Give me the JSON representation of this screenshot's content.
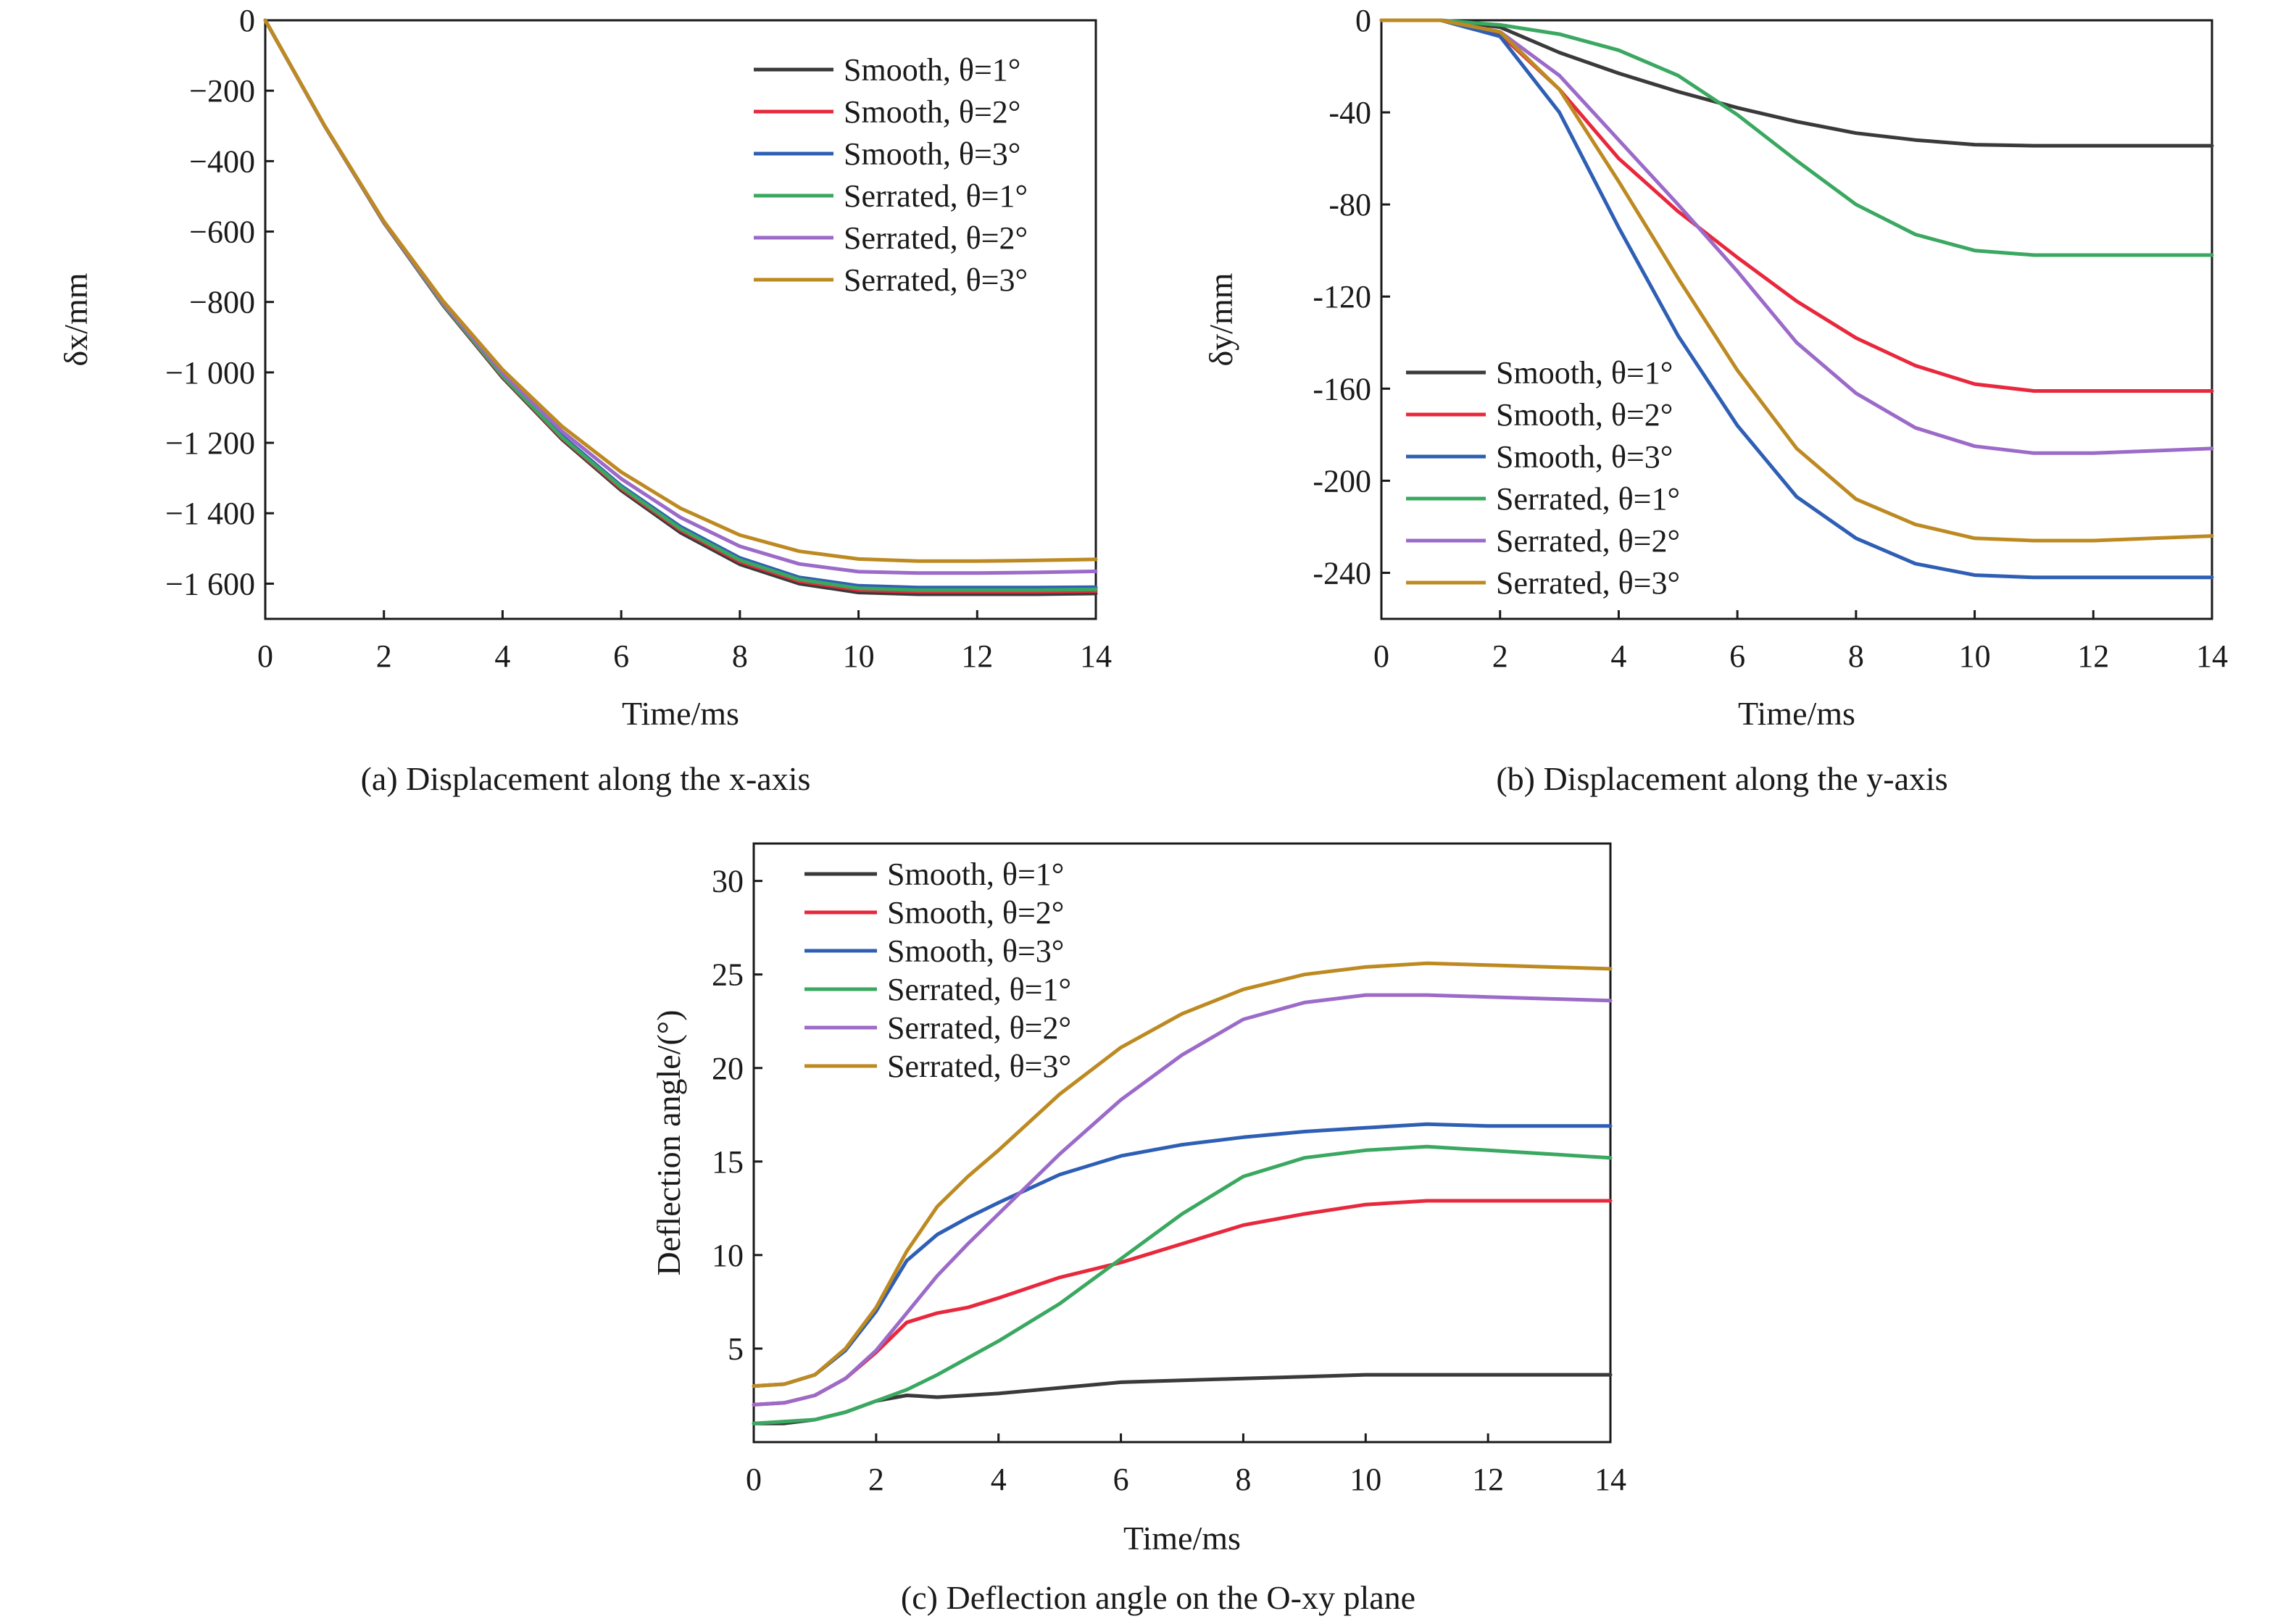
{
  "colors": {
    "smooth_1": "#3a3a3a",
    "smooth_2": "#e8283c",
    "smooth_3": "#2e5fb4",
    "serrated_1": "#3aa860",
    "serrated_2": "#9c6ac8",
    "serrated_3": "#bd8a22"
  },
  "chart_data": [
    {
      "type": "line",
      "caption": "(a) Displacement along the x-axis",
      "xlabel": "Time/ms",
      "ylabel": "δx/mm",
      "xlim": [
        0,
        14
      ],
      "ylim": [
        -1700,
        0
      ],
      "xticks": [
        0,
        2,
        4,
        6,
        8,
        10,
        12,
        14
      ],
      "xtick_labels": [
        "0",
        "2",
        "4",
        "6",
        "8",
        "10",
        "12",
        "14"
      ],
      "yticks": [
        0,
        -200,
        -400,
        -600,
        -800,
        -1000,
        -1200,
        -1400,
        -1600
      ],
      "ytick_labels": [
        "0",
        "−200",
        "−400",
        "−600",
        "−800",
        "−1 000",
        "−1 200",
        "−1 400",
        "−1 600"
      ],
      "legend_position": "top-right",
      "x": [
        0,
        1,
        2,
        3,
        4,
        5,
        6,
        7,
        8,
        9,
        10,
        11,
        12,
        13,
        14
      ],
      "series": [
        {
          "name": "Smooth, θ=1°",
          "color_key": "smooth_1",
          "values": [
            0,
            -300,
            -575,
            -810,
            -1015,
            -1190,
            -1335,
            -1455,
            -1545,
            -1600,
            -1625,
            -1630,
            -1630,
            -1630,
            -1628
          ]
        },
        {
          "name": "Smooth, θ=2°",
          "color_key": "smooth_2",
          "values": [
            0,
            -300,
            -575,
            -808,
            -1012,
            -1186,
            -1330,
            -1448,
            -1538,
            -1593,
            -1618,
            -1623,
            -1623,
            -1623,
            -1621
          ]
        },
        {
          "name": "Smooth, θ=3°",
          "color_key": "smooth_3",
          "values": [
            0,
            -300,
            -574,
            -806,
            -1008,
            -1180,
            -1322,
            -1438,
            -1527,
            -1582,
            -1606,
            -1611,
            -1611,
            -1611,
            -1610
          ]
        },
        {
          "name": "Serrated, θ=1°",
          "color_key": "serrated_1",
          "values": [
            0,
            -300,
            -574,
            -807,
            -1010,
            -1184,
            -1326,
            -1444,
            -1533,
            -1588,
            -1613,
            -1618,
            -1618,
            -1618,
            -1616
          ]
        },
        {
          "name": "Serrated, θ=2°",
          "color_key": "serrated_2",
          "values": [
            0,
            -300,
            -573,
            -803,
            -1001,
            -1167,
            -1302,
            -1412,
            -1494,
            -1544,
            -1566,
            -1570,
            -1570,
            -1568,
            -1565
          ]
        },
        {
          "name": "Serrated, θ=3°",
          "color_key": "serrated_3",
          "values": [
            0,
            -299,
            -571,
            -798,
            -992,
            -1153,
            -1283,
            -1386,
            -1462,
            -1508,
            -1530,
            -1536,
            -1536,
            -1534,
            -1531
          ]
        }
      ]
    },
    {
      "type": "line",
      "caption": "(b) Displacement along the y-axis",
      "xlabel": "Time/ms",
      "ylabel": "δy/mm",
      "xlim": [
        0,
        14
      ],
      "ylim": [
        -260,
        0
      ],
      "xticks": [
        0,
        2,
        4,
        6,
        8,
        10,
        12,
        14
      ],
      "xtick_labels": [
        "0",
        "2",
        "4",
        "6",
        "8",
        "10",
        "12",
        "14"
      ],
      "yticks": [
        0,
        -40,
        -80,
        -120,
        -160,
        -200,
        -240
      ],
      "ytick_labels": [
        "0",
        "-40",
        "-80",
        "-120",
        "-160",
        "-200",
        "-240"
      ],
      "legend_position": "bottom-left",
      "x": [
        0,
        1,
        2,
        3,
        4,
        5,
        6,
        7,
        8,
        9,
        10,
        11,
        12,
        13,
        14
      ],
      "series": [
        {
          "name": "Smooth, θ=1°",
          "color_key": "smooth_1",
          "values": [
            0,
            0,
            -3,
            -14,
            -23,
            -31,
            -38,
            -44,
            -49,
            -52,
            -54,
            -54.5,
            -54.5,
            -54.5,
            -54.5
          ]
        },
        {
          "name": "Smooth, θ=2°",
          "color_key": "smooth_2",
          "values": [
            0,
            0,
            -6,
            -30,
            -60,
            -83,
            -103,
            -122,
            -138,
            -150,
            -158,
            -161,
            -161,
            -161,
            -161
          ]
        },
        {
          "name": "Smooth, θ=3°",
          "color_key": "smooth_3",
          "values": [
            0,
            0,
            -7,
            -40,
            -90,
            -137,
            -176,
            -207,
            -225,
            -236,
            -241,
            -242,
            -242,
            -242,
            -242
          ]
        },
        {
          "name": "Serrated, θ=1°",
          "color_key": "serrated_1",
          "values": [
            0,
            0,
            -2,
            -6,
            -13,
            -24,
            -41,
            -61,
            -80,
            -93,
            -100,
            -102,
            -102,
            -102,
            -102
          ]
        },
        {
          "name": "Serrated, θ=2°",
          "color_key": "serrated_2",
          "values": [
            0,
            0,
            -5,
            -24,
            -52,
            -80,
            -109,
            -140,
            -162,
            -177,
            -185,
            -188,
            -188,
            -187,
            -186
          ]
        },
        {
          "name": "Serrated, θ=3°",
          "color_key": "serrated_3",
          "values": [
            0,
            0,
            -5,
            -30,
            -70,
            -112,
            -152,
            -186,
            -208,
            -219,
            -225,
            -226,
            -226,
            -225,
            -224
          ]
        }
      ]
    },
    {
      "type": "line",
      "caption": "(c) Deflection angle on the O-xy plane",
      "xlabel": "Time/ms",
      "ylabel": "Deflection angle/(°)",
      "xlim": [
        0,
        14
      ],
      "ylim": [
        0,
        32
      ],
      "xticks": [
        0,
        2,
        4,
        6,
        8,
        10,
        12,
        14
      ],
      "xtick_labels": [
        "0",
        "2",
        "4",
        "6",
        "8",
        "10",
        "12",
        "14"
      ],
      "yticks": [
        5,
        10,
        15,
        20,
        25,
        30
      ],
      "ytick_labels": [
        "5",
        "10",
        "15",
        "20",
        "25",
        "30"
      ],
      "legend_position": "top-left",
      "x": [
        0,
        0.5,
        1,
        1.5,
        2,
        2.5,
        3,
        3.5,
        4,
        5,
        6,
        7,
        8,
        9,
        10,
        11,
        12,
        13,
        14
      ],
      "series": [
        {
          "name": "Smooth, θ=1°",
          "color_key": "smooth_1",
          "values": [
            1,
            1,
            1.2,
            1.6,
            2.2,
            2.5,
            2.4,
            2.5,
            2.6,
            2.9,
            3.2,
            3.3,
            3.4,
            3.5,
            3.6,
            3.6,
            3.6,
            3.6,
            3.6
          ]
        },
        {
          "name": "Smooth, θ=2°",
          "color_key": "smooth_2",
          "values": [
            2,
            2.1,
            2.5,
            3.4,
            4.8,
            6.4,
            6.9,
            7.2,
            7.7,
            8.8,
            9.6,
            10.6,
            11.6,
            12.2,
            12.7,
            12.9,
            12.9,
            12.9,
            12.9
          ]
        },
        {
          "name": "Smooth, θ=3°",
          "color_key": "smooth_3",
          "values": [
            3,
            3.1,
            3.6,
            4.9,
            7.0,
            9.7,
            11.1,
            12.0,
            12.8,
            14.3,
            15.3,
            15.9,
            16.3,
            16.6,
            16.8,
            17.0,
            16.9,
            16.9,
            16.9
          ]
        },
        {
          "name": "Serrated, θ=1°",
          "color_key": "serrated_1",
          "values": [
            1,
            1.1,
            1.2,
            1.6,
            2.2,
            2.8,
            3.6,
            4.5,
            5.4,
            7.4,
            9.8,
            12.2,
            14.2,
            15.2,
            15.6,
            15.8,
            15.6,
            15.4,
            15.2
          ]
        },
        {
          "name": "Serrated, θ=2°",
          "color_key": "serrated_2",
          "values": [
            2,
            2.1,
            2.5,
            3.4,
            4.9,
            6.9,
            8.9,
            10.6,
            12.2,
            15.4,
            18.3,
            20.7,
            22.6,
            23.5,
            23.9,
            23.9,
            23.8,
            23.7,
            23.6
          ]
        },
        {
          "name": "Serrated, θ=3°",
          "color_key": "serrated_3",
          "values": [
            3,
            3.1,
            3.6,
            5.0,
            7.2,
            10.2,
            12.6,
            14.2,
            15.6,
            18.6,
            21.1,
            22.9,
            24.2,
            25.0,
            25.4,
            25.6,
            25.5,
            25.4,
            25.3
          ]
        }
      ]
    }
  ]
}
